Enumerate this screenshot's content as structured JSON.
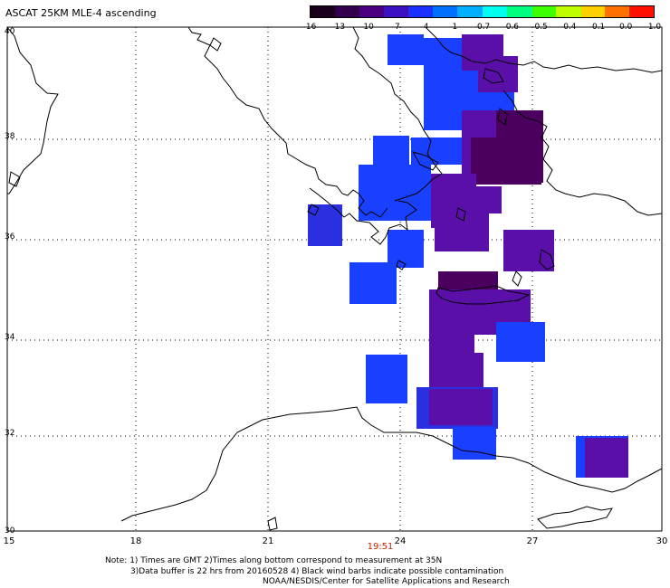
{
  "title": "ASCAT 25KM MLE-4 ascending",
  "colorbar": {
    "ticks": [
      "-16",
      "-13",
      "-10",
      "-7",
      "-4",
      "-1",
      "-0.7",
      "-0.6",
      "-0.5",
      "-0.4",
      "-0.1",
      "0.0",
      "1.0"
    ],
    "colors": [
      "#1a001a",
      "#33004d",
      "#4b0082",
      "#3a10c0",
      "#1a30ff",
      "#0070ff",
      "#00b0ff",
      "#00ffee",
      "#00ff80",
      "#40ff00",
      "#c0ff00",
      "#ffd000",
      "#ff7000",
      "#ff1000"
    ]
  },
  "axes": {
    "lat_labels": [
      "40",
      "38",
      "36",
      "34",
      "32",
      "30"
    ],
    "lon_labels": [
      "15",
      "18",
      "21",
      "24",
      "27",
      "30"
    ]
  },
  "time_label": "19:51",
  "notes": [
    "Note: 1) Times are GMT 2)Times along bottom correspond to measurement at 35N",
    "3)Data buffer is 22 hrs from 20160528 4) Black wind barbs indicate possible contamination",
    "NOAA/NESDIS/Center for Satellite Applications and Research"
  ],
  "colors": {
    "dark_purple": "#4b0060",
    "purple": "#5a10a8",
    "blue": "#1a40ff",
    "mid_blue": "#2a30e0",
    "note_time": "#cc2200"
  }
}
